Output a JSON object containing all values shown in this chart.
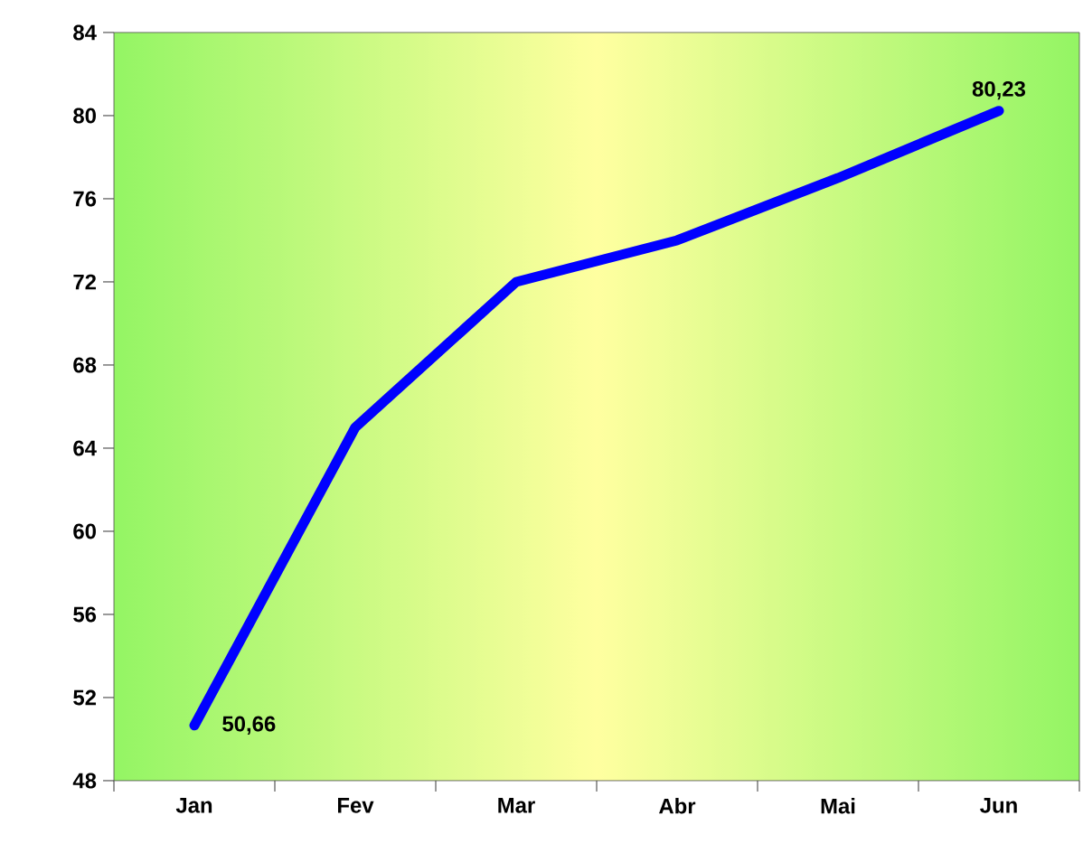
{
  "chart_data": {
    "type": "line",
    "categories": [
      "Jan",
      "Fev",
      "Mar",
      "Abr",
      "Mai",
      "Jun"
    ],
    "series": [
      {
        "color": "#0000ff",
        "values": [
          50.66,
          65,
          72,
          74,
          77,
          80.23
        ],
        "value_labels": [
          "50,66",
          null,
          null,
          null,
          null,
          "80,23"
        ]
      }
    ],
    "ylim": [
      48,
      84
    ],
    "yticks": [
      48,
      52,
      56,
      60,
      64,
      68,
      72,
      76,
      80,
      84
    ],
    "grid": false,
    "marker": "none",
    "line_style": "solid"
  }
}
